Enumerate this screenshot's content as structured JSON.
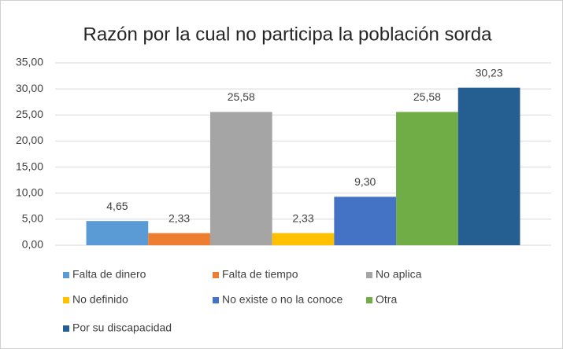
{
  "chart_data": {
    "type": "bar",
    "title": "Razón por la cual no participa la población sorda",
    "series": [
      {
        "name": "Falta de dinero",
        "color": "#5b9bd5",
        "values": [
          4.65
        ],
        "value_labels": [
          "4,65"
        ]
      },
      {
        "name": "Falta de tiempo",
        "color": "#ed7d31",
        "values": [
          2.33
        ],
        "value_labels": [
          "2,33"
        ]
      },
      {
        "name": "No aplica",
        "color": "#a5a5a5",
        "values": [
          25.58
        ],
        "value_labels": [
          "25,58"
        ]
      },
      {
        "name": "No definido",
        "color": "#ffc000",
        "values": [
          2.33
        ],
        "value_labels": [
          "2,33"
        ]
      },
      {
        "name": "No existe o no la conoce",
        "color": "#4472c4",
        "values": [
          9.3
        ],
        "value_labels": [
          "9,30"
        ]
      },
      {
        "name": "Otra",
        "color": "#70ad47",
        "values": [
          25.58
        ],
        "value_labels": [
          "25,58"
        ]
      },
      {
        "name": "Por su discapacidad",
        "color": "#255e91",
        "values": [
          30.23
        ],
        "value_labels": [
          "30,23"
        ]
      }
    ],
    "ylim": [
      0,
      35
    ],
    "yticks": [
      {
        "value": 0,
        "label": "0,00"
      },
      {
        "value": 5,
        "label": "5,00"
      },
      {
        "value": 10,
        "label": "10,00"
      },
      {
        "value": 15,
        "label": "15,00"
      },
      {
        "value": 20,
        "label": "20,00"
      },
      {
        "value": 25,
        "label": "25,00"
      },
      {
        "value": 30,
        "label": "30,00"
      },
      {
        "value": 35,
        "label": "35,00"
      }
    ],
    "grid": true,
    "legend": "bottom"
  }
}
